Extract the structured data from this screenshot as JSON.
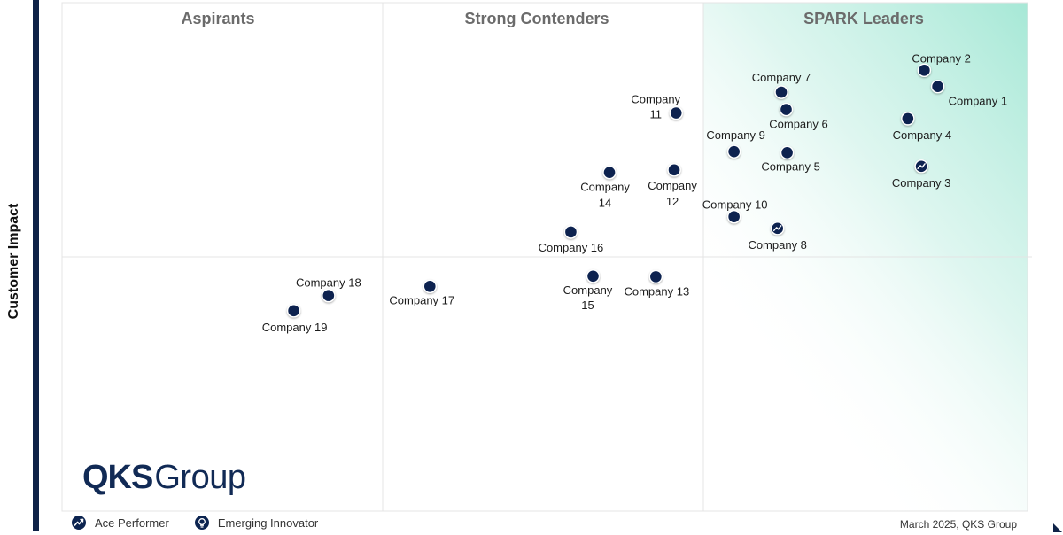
{
  "chart_data": {
    "type": "scatter",
    "title": "",
    "xlabel": "",
    "ylabel": "Customer Impact",
    "xlim": [
      0,
      100
    ],
    "ylim": [
      0,
      100
    ],
    "x_dividers": [
      33.33,
      66.67
    ],
    "y_divider": 50,
    "quadrants": [
      "Aspirants",
      "Strong Contenders",
      "SPARK Leaders"
    ],
    "grid": false,
    "points": [
      {
        "name": "Company 1",
        "x": 90.7,
        "y": 83.5,
        "marker": "standard"
      },
      {
        "name": "Company 2",
        "x": 89.3,
        "y": 86.7,
        "marker": "standard"
      },
      {
        "name": "Company 3",
        "x": 89.0,
        "y": 67.8,
        "marker": "ace-performer"
      },
      {
        "name": "Company 4",
        "x": 87.6,
        "y": 77.2,
        "marker": "standard"
      },
      {
        "name": "Company 5",
        "x": 75.1,
        "y": 70.5,
        "marker": "standard"
      },
      {
        "name": "Company 6",
        "x": 75.0,
        "y": 79.0,
        "marker": "standard"
      },
      {
        "name": "Company 7",
        "x": 74.5,
        "y": 82.4,
        "marker": "standard"
      },
      {
        "name": "Company 8",
        "x": 74.1,
        "y": 55.6,
        "marker": "ace-performer"
      },
      {
        "name": "Company 9",
        "x": 69.6,
        "y": 70.7,
        "marker": "standard"
      },
      {
        "name": "Company 10",
        "x": 69.6,
        "y": 57.9,
        "marker": "standard"
      },
      {
        "name": "Company 11",
        "x": 63.6,
        "y": 78.3,
        "marker": "standard"
      },
      {
        "name": "Company 12",
        "x": 63.4,
        "y": 67.1,
        "marker": "standard"
      },
      {
        "name": "Company 13",
        "x": 61.5,
        "y": 46.1,
        "marker": "standard"
      },
      {
        "name": "Company 14",
        "x": 56.7,
        "y": 66.6,
        "marker": "standard"
      },
      {
        "name": "Company 15",
        "x": 55.0,
        "y": 46.2,
        "marker": "standard"
      },
      {
        "name": "Company 16",
        "x": 52.7,
        "y": 54.9,
        "marker": "standard"
      },
      {
        "name": "Company 17",
        "x": 38.1,
        "y": 44.2,
        "marker": "standard"
      },
      {
        "name": "Company 18",
        "x": 27.6,
        "y": 42.4,
        "marker": "standard"
      },
      {
        "name": "Company 19",
        "x": 24.0,
        "y": 39.4,
        "marker": "standard"
      }
    ],
    "legend": [
      "Ace Performer",
      "Emerging Innovator"
    ],
    "legend_position": "bottom-left"
  },
  "brand": {
    "logo_bold": "QKS",
    "logo_light": "Group"
  },
  "footer": {
    "date": "March 2025, QKS Group"
  },
  "colors": {
    "marker": "#0c2450",
    "leader_gradient": "#a6e8d6",
    "axis_bar": "#0e2247",
    "logo": "#112a55"
  }
}
